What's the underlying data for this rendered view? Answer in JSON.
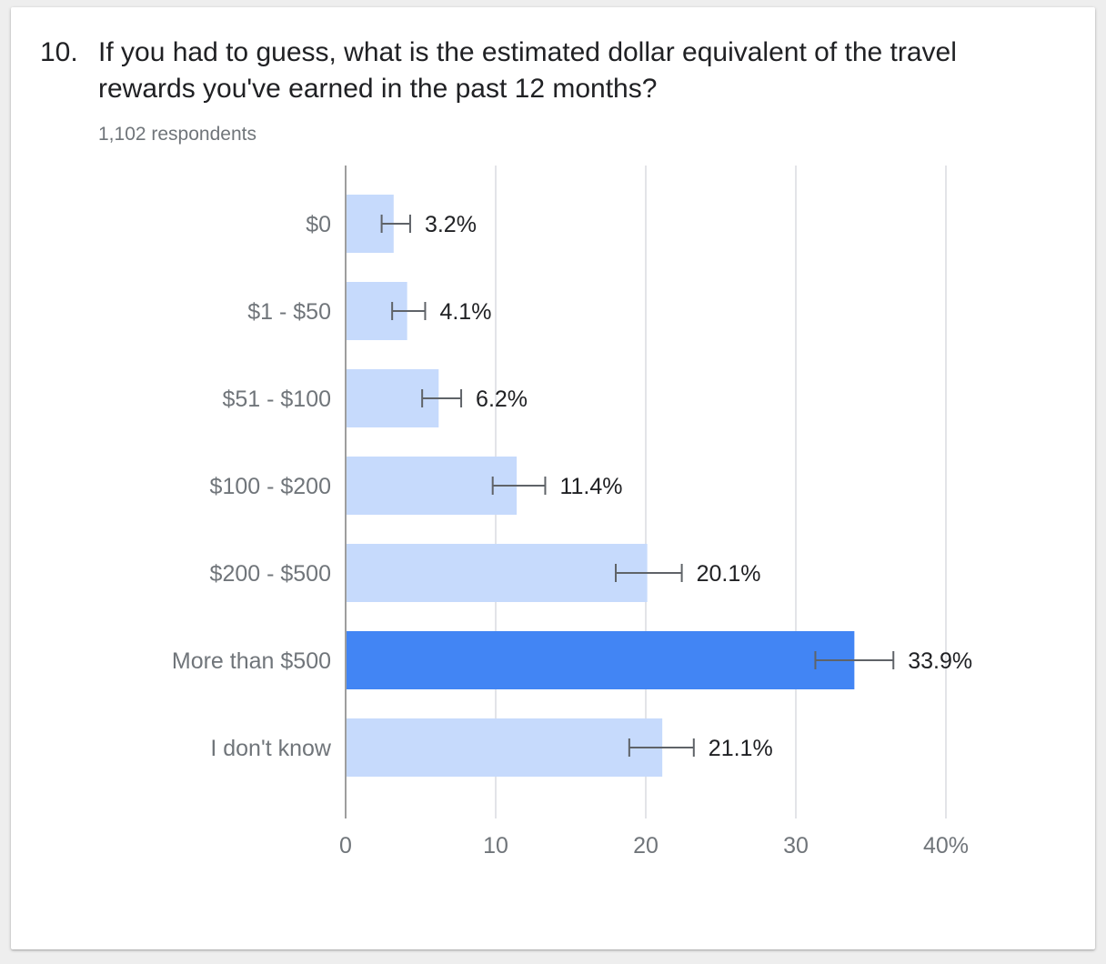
{
  "question": {
    "number": "10.",
    "title": "If you had to guess, what is the estimated dollar equivalent of the travel rewards you've earned in the past 12 months?",
    "respondents": "1,102 respondents"
  },
  "colors": {
    "bar": "#c6dafc",
    "highlight": "#4285f4",
    "grid": "#dadce0",
    "axis": "#9e9e9e",
    "errorbar": "#5f6368"
  },
  "chart_data": {
    "type": "bar",
    "orientation": "horizontal",
    "categories": [
      "$0",
      "$1 - $50",
      "$51 - $100",
      "$100 - $200",
      "$200 - $500",
      "More than $500",
      "I don't know"
    ],
    "values": [
      3.2,
      4.1,
      6.2,
      11.4,
      20.1,
      33.9,
      21.1
    ],
    "value_labels": [
      "3.2%",
      "4.1%",
      "6.2%",
      "11.4%",
      "20.1%",
      "33.9%",
      "21.1%"
    ],
    "error_low": [
      2.4,
      3.1,
      5.1,
      9.8,
      18.0,
      31.3,
      18.9
    ],
    "error_high": [
      4.3,
      5.3,
      7.7,
      13.3,
      22.4,
      36.5,
      23.2
    ],
    "highlight_index": 5,
    "xlim": [
      0,
      40
    ],
    "xticks": [
      0,
      10,
      20,
      30,
      40
    ],
    "xtick_labels": [
      "0",
      "10",
      "20",
      "30",
      "40%"
    ],
    "grid": true
  }
}
